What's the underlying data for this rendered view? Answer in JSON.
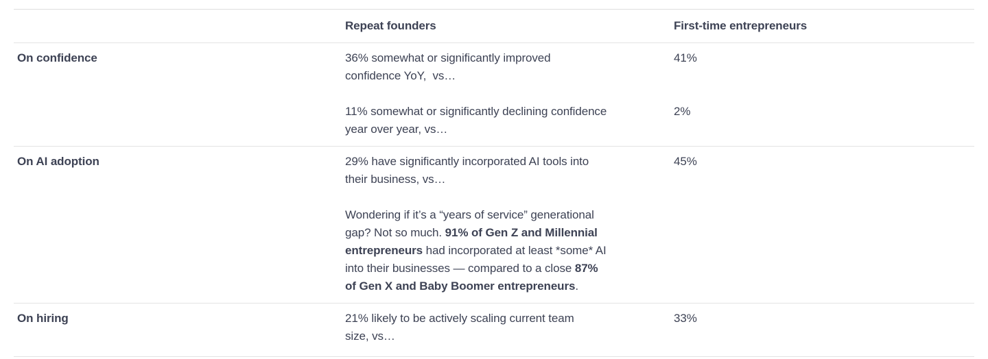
{
  "colors": {
    "background": "#ffffff",
    "text": "#3d4254",
    "divider": "#e3e3e3"
  },
  "table": {
    "header": {
      "col_label": "",
      "col_repeat": "Repeat founders",
      "col_first_time": "First-time entrepreneurs"
    },
    "sections": [
      {
        "label": "On confidence",
        "entries": [
          {
            "text": "36% somewhat or significantly improved\nconfidence YoY,  vs…",
            "value": "41%"
          },
          {
            "text": "11% somewhat or significantly declining confidence\nyear over year, vs…",
            "value": "2%"
          }
        ]
      },
      {
        "label": "On AI adoption",
        "entries": [
          {
            "text": "29% have significantly incorporated AI tools into\ntheir business, vs…",
            "value": "45%"
          },
          {
            "rich": [
              {
                "text": "Wondering if it’s a “years of service” generational\ngap? Not so much. ",
                "bold": false
              },
              {
                "text": "91% of Gen Z and Millennial\nentrepreneurs",
                "bold": true
              },
              {
                "text": " had incorporated at least *some* AI\ninto their businesses — compared to a close ",
                "bold": false
              },
              {
                "text": "87%\nof Gen X and Baby Boomer entrepreneurs",
                "bold": true
              },
              {
                "text": ".",
                "bold": false
              }
            ],
            "value": ""
          }
        ]
      },
      {
        "label": "On hiring",
        "entries": [
          {
            "text": "21% likely to be actively scaling current team\nsize, vs…",
            "value": "33%"
          }
        ]
      }
    ]
  },
  "chart_data": {
    "type": "table",
    "columns": [
      "",
      "Repeat founders",
      "First-time entrepreneurs"
    ],
    "rows": [
      [
        "On confidence",
        "36% somewhat or significantly improved confidence YoY, vs…",
        "41%"
      ],
      [
        "On confidence",
        "11% somewhat or significantly declining confidence year over year, vs…",
        "2%"
      ],
      [
        "On AI adoption",
        "29% have significantly incorporated AI tools into their business, vs…",
        "45%"
      ],
      [
        "On AI adoption",
        "Wondering if it’s a “years of service” generational gap? Not so much. 91% of Gen Z and Millennial entrepreneurs had incorporated at least *some* AI into their businesses — compared to a close 87% of Gen X and Baby Boomer entrepreneurs.",
        ""
      ],
      [
        "On hiring",
        "21% likely to be actively scaling current team size, vs…",
        "33%"
      ]
    ]
  }
}
